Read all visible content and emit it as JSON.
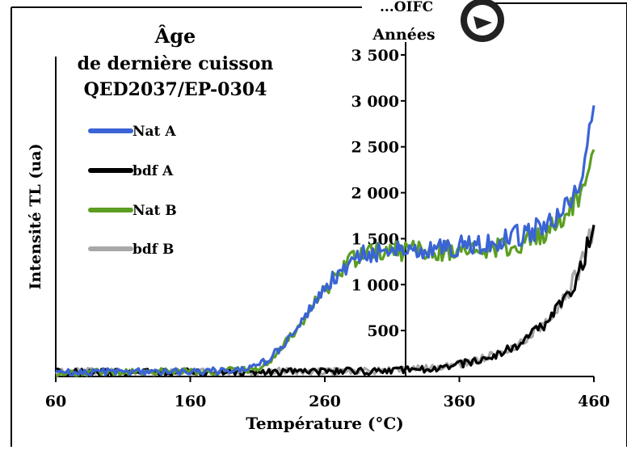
{
  "chart_data": {
    "type": "line",
    "title": [
      "Âge",
      "de dernière cuisson",
      "QED2037/EP-0304"
    ],
    "xlabel": "Température (°C)",
    "ylabel": "Intensité TL (ua)",
    "y2label": "Années",
    "xlim": [
      60,
      460
    ],
    "y2lim": [
      0,
      3500
    ],
    "ylim": [
      0,
      3500
    ],
    "x_ticks": [
      "60",
      "160",
      "260",
      "360",
      "460"
    ],
    "y2_ticks": [
      "500",
      "1 000",
      "1 500",
      "2 000",
      "2 500",
      "3 000",
      "3 500"
    ],
    "y2_tick_values": [
      500,
      1000,
      1500,
      2000,
      2500,
      3000,
      3500
    ],
    "grid": false,
    "legend_position": "left",
    "series": [
      {
        "name": "Nat A",
        "color": "#3a63d6",
        "x": [
          60,
          80,
          100,
          120,
          140,
          160,
          180,
          200,
          210,
          220,
          230,
          240,
          250,
          260,
          270,
          280,
          290,
          300,
          310,
          320,
          330,
          340,
          350,
          360,
          370,
          380,
          390,
          400,
          410,
          420,
          430,
          440,
          450,
          455,
          460
        ],
        "y": [
          40,
          45,
          50,
          55,
          50,
          60,
          60,
          70,
          110,
          200,
          360,
          560,
          760,
          950,
          1130,
          1270,
          1330,
          1370,
          1390,
          1410,
          1400,
          1400,
          1410,
          1420,
          1440,
          1460,
          1490,
          1520,
          1560,
          1620,
          1720,
          1880,
          2150,
          2500,
          2950
        ]
      },
      {
        "name": "bdf A",
        "color": "#000000",
        "x": [
          60,
          100,
          140,
          180,
          220,
          260,
          300,
          320,
          340,
          360,
          370,
          380,
          390,
          400,
          410,
          420,
          430,
          440,
          450,
          455,
          460
        ],
        "y": [
          50,
          45,
          50,
          45,
          50,
          55,
          60,
          70,
          90,
          130,
          160,
          200,
          250,
          320,
          410,
          520,
          680,
          880,
          1150,
          1400,
          1650
        ]
      },
      {
        "name": "Nat B",
        "color": "#5c9e21",
        "x": [
          60,
          80,
          100,
          120,
          140,
          160,
          180,
          200,
          210,
          220,
          230,
          240,
          250,
          260,
          270,
          280,
          290,
          300,
          310,
          320,
          330,
          340,
          350,
          360,
          370,
          380,
          390,
          400,
          410,
          420,
          430,
          440,
          450,
          455,
          460
        ],
        "y": [
          40,
          45,
          50,
          50,
          55,
          55,
          60,
          70,
          100,
          190,
          350,
          550,
          760,
          950,
          1120,
          1260,
          1320,
          1350,
          1360,
          1370,
          1370,
          1370,
          1370,
          1360,
          1370,
          1380,
          1400,
          1430,
          1470,
          1530,
          1620,
          1780,
          2000,
          2250,
          2470
        ]
      },
      {
        "name": "bdf B",
        "color": "#a8a8a8",
        "x": [
          60,
          100,
          140,
          180,
          220,
          260,
          300,
          320,
          340,
          360,
          370,
          380,
          390,
          400,
          410,
          420,
          430,
          440,
          450,
          455,
          460
        ],
        "y": [
          55,
          50,
          55,
          50,
          55,
          55,
          60,
          70,
          95,
          130,
          165,
          205,
          260,
          330,
          420,
          530,
          690,
          900,
          1180,
          1420,
          1640
        ]
      }
    ]
  },
  "stamp": {
    "text": "...OIFC"
  }
}
